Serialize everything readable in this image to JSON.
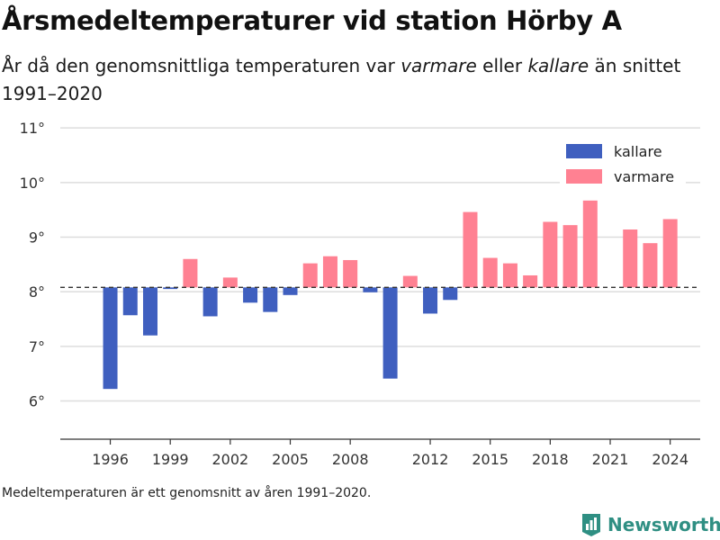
{
  "header": {
    "title": "Årsmedeltemperaturer vid station Hörby A",
    "subtitle_part1": "År då den genomsnittliga temperaturen var ",
    "subtitle_em1": "varmare",
    "subtitle_part2": " eller ",
    "subtitle_em2": "kallare",
    "subtitle_part3": " än snittet 1991–2020"
  },
  "footnote": "Medeltemperaturen är ett genomsnitt av åren 1991–2020.",
  "brand": {
    "name": "Newsworthy",
    "icon": "newsworthy-logo-icon",
    "color": "#2f8f83"
  },
  "chart_data": {
    "type": "bar",
    "title": "Årsmedeltemperaturer vid station Hörby A",
    "xlabel": "",
    "ylabel": "",
    "ylim": [
      5.3,
      11.2
    ],
    "xlim": [
      1993.5,
      2025.5
    ],
    "y_ticks": [
      6,
      7,
      8,
      9,
      10,
      11
    ],
    "y_tick_labels": [
      "6°",
      "7°",
      "8°",
      "9°",
      "10°",
      "11°"
    ],
    "x_ticks": [
      1996,
      1999,
      2002,
      2005,
      2008,
      2012,
      2015,
      2018,
      2021,
      2024
    ],
    "baseline": 8.08,
    "grid": true,
    "legend_position": "top-right",
    "legend": [
      {
        "label": "kallare",
        "color": "#3f5fbf"
      },
      {
        "label": "varmare",
        "color": "#ff8192"
      }
    ],
    "years": [
      1996,
      1997,
      1998,
      1999,
      2000,
      2001,
      2002,
      2003,
      2004,
      2005,
      2006,
      2007,
      2008,
      2009,
      2010,
      2011,
      2012,
      2013,
      2014,
      2015,
      2016,
      2017,
      2018,
      2019,
      2020,
      2022,
      2023,
      2024
    ],
    "values": [
      6.22,
      7.57,
      7.2,
      8.05,
      8.6,
      7.55,
      8.26,
      7.8,
      7.63,
      7.94,
      8.52,
      8.65,
      8.58,
      7.99,
      6.41,
      8.29,
      7.6,
      7.85,
      9.46,
      8.62,
      8.52,
      8.3,
      9.28,
      9.22,
      9.67,
      9.14,
      8.89,
      9.33
    ]
  }
}
